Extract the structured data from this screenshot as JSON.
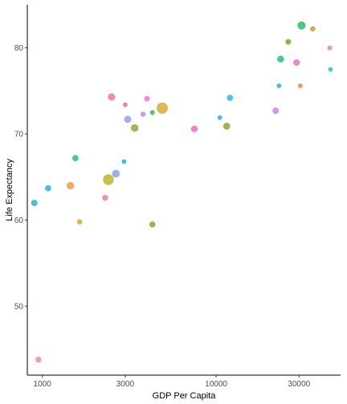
{
  "chart_data": {
    "type": "scatter",
    "title": "",
    "xlabel": "GDP Per Capita",
    "ylabel": "Life Expectancy",
    "x_scale": "log10",
    "xlim": [
      820,
      52000
    ],
    "ylim": [
      42,
      85
    ],
    "x_ticks": [
      1000,
      3000,
      10000,
      30000
    ],
    "x_tick_labels": [
      "1000",
      "3000",
      "10000",
      "30000"
    ],
    "y_ticks": [
      50,
      60,
      70,
      80
    ],
    "y_tick_labels": [
      "50",
      "60",
      "70",
      "80"
    ],
    "grid": false,
    "legend": "none",
    "points": [
      {
        "gdp": 31000,
        "life": 82.6,
        "size": 2.0,
        "color": "#1fb65a"
      },
      {
        "gdp": 36000,
        "life": 82.2,
        "size": 0.8,
        "color": "#b5a31b"
      },
      {
        "gdp": 45000,
        "life": 80.0,
        "size": 0.6,
        "color": "#ee6bd8"
      },
      {
        "gdp": 26000,
        "life": 80.7,
        "size": 0.9,
        "color": "#5eab1b"
      },
      {
        "gdp": 23500,
        "life": 78.7,
        "size": 1.4,
        "color": "#18b87e"
      },
      {
        "gdp": 29000,
        "life": 78.3,
        "size": 1.2,
        "color": "#f062c5"
      },
      {
        "gdp": 23000,
        "life": 75.6,
        "size": 0.6,
        "color": "#16a9e1"
      },
      {
        "gdp": 30500,
        "life": 75.6,
        "size": 0.6,
        "color": "#f07a3a"
      },
      {
        "gdp": 45500,
        "life": 77.5,
        "size": 0.6,
        "color": "#1cbfb0"
      },
      {
        "gdp": 2500,
        "life": 74.3,
        "size": 1.6,
        "color": "#f26aa3"
      },
      {
        "gdp": 3000,
        "life": 73.4,
        "size": 0.6,
        "color": "#f0637d"
      },
      {
        "gdp": 4000,
        "life": 74.1,
        "size": 0.8,
        "color": "#ef67cf"
      },
      {
        "gdp": 4900,
        "life": 73.0,
        "size": 4.0,
        "color": "#d2a527"
      },
      {
        "gdp": 12000,
        "life": 74.2,
        "size": 1.1,
        "color": "#19b6d9"
      },
      {
        "gdp": 3100,
        "life": 71.7,
        "size": 1.5,
        "color": "#8f98e8"
      },
      {
        "gdp": 3400,
        "life": 70.7,
        "size": 1.7,
        "color": "#86a41b"
      },
      {
        "gdp": 3800,
        "life": 72.3,
        "size": 0.8,
        "color": "#c57ff0"
      },
      {
        "gdp": 4300,
        "life": 72.5,
        "size": 0.6,
        "color": "#2ab84a"
      },
      {
        "gdp": 7500,
        "life": 70.6,
        "size": 1.3,
        "color": "#ec5fc6"
      },
      {
        "gdp": 10500,
        "life": 71.9,
        "size": 0.6,
        "color": "#19b2cf"
      },
      {
        "gdp": 11500,
        "life": 70.9,
        "size": 1.4,
        "color": "#79a61a"
      },
      {
        "gdp": 22000,
        "life": 72.7,
        "size": 1.2,
        "color": "#c879e8"
      },
      {
        "gdp": 1550,
        "life": 67.2,
        "size": 1.1,
        "color": "#1ab68f"
      },
      {
        "gdp": 1450,
        "life": 64.0,
        "size": 1.7,
        "color": "#ed963a"
      },
      {
        "gdp": 1080,
        "life": 63.7,
        "size": 1.1,
        "color": "#17acd9"
      },
      {
        "gdp": 900,
        "life": 62.0,
        "size": 1.2,
        "color": "#18acd8"
      },
      {
        "gdp": 2400,
        "life": 64.7,
        "size": 3.7,
        "color": "#b9b021"
      },
      {
        "gdp": 2650,
        "life": 65.4,
        "size": 1.8,
        "color": "#7f9aec"
      },
      {
        "gdp": 2950,
        "life": 66.8,
        "size": 0.6,
        "color": "#17a8d8"
      },
      {
        "gdp": 2300,
        "life": 62.6,
        "size": 1.0,
        "color": "#f26d9d"
      },
      {
        "gdp": 1640,
        "life": 59.8,
        "size": 0.8,
        "color": "#d8a41a"
      },
      {
        "gdp": 4300,
        "life": 59.5,
        "size": 1.1,
        "color": "#7ea51b"
      },
      {
        "gdp": 950,
        "life": 43.8,
        "size": 1.0,
        "color": "#f28080"
      }
    ]
  }
}
